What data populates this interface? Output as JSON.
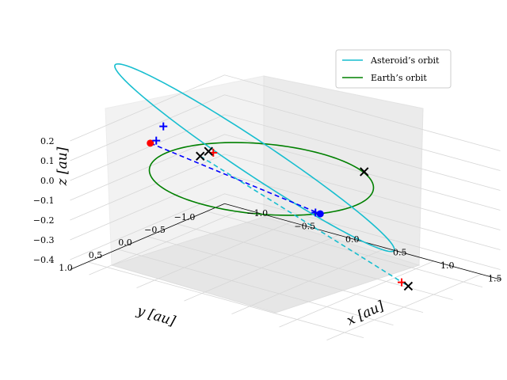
{
  "chart_data": {
    "type": "line",
    "projection": "3d",
    "xlabel": "x [au]",
    "ylabel": "y [au]",
    "zlabel": "z [au]",
    "xticks": [
      "−1.0",
      "−0.5",
      "0.0",
      "0.5",
      "1.0",
      "1.5"
    ],
    "yticks": [
      "1.0",
      "0.5",
      "0.0",
      "−0.5",
      "−1.0"
    ],
    "zticks": [
      "0.2",
      "0.1",
      "0.0",
      "−0.1",
      "−0.2",
      "−0.3",
      "−0.4"
    ],
    "grid": true,
    "legend_position": "top-right",
    "series": [
      {
        "name": "Asteroid’s orbit",
        "color": "#17becf",
        "style": "solid",
        "kind": "ellipse",
        "semi_major_axis_au": 1.2,
        "eccentricity": 0.3,
        "inclination_deg": 20
      },
      {
        "name": "Earth’s orbit",
        "color": "#008000",
        "style": "solid",
        "kind": "circle",
        "radius_au": 1.0
      }
    ],
    "markers": {
      "earth_point": {
        "color": "#0000ff",
        "shape": "circle",
        "xyz": [
          0.9,
          0.45,
          0.0
        ]
      },
      "asteroid_point": {
        "color": "#ff0000",
        "shape": "circle",
        "xyz": [
          -0.95,
          0.35,
          0.1
        ]
      },
      "crosses_black": [
        [
          0.55,
          -0.85,
          0.0
        ],
        [
          -0.05,
          0.95,
          0.23
        ],
        [
          1.42,
          -0.2,
          -0.38
        ],
        [
          -0.9,
          -0.55,
          -0.05
        ]
      ],
      "plus_blue": [
        [
          -1.0,
          0.05,
          0.14
        ],
        [
          -0.95,
          0.25,
          0.1
        ],
        [
          0.85,
          0.45,
          0.0
        ]
      ],
      "plus_red": [
        [
          -0.85,
          -0.55,
          -0.05
        ],
        [
          1.35,
          -0.2,
          -0.37
        ]
      ]
    },
    "connectors": [
      {
        "color": "#0000ff",
        "style": "dashed",
        "from": "asteroid_point",
        "to": "earth_point"
      },
      {
        "color": "#17becf",
        "style": "dashed",
        "note_free": true
      }
    ]
  }
}
